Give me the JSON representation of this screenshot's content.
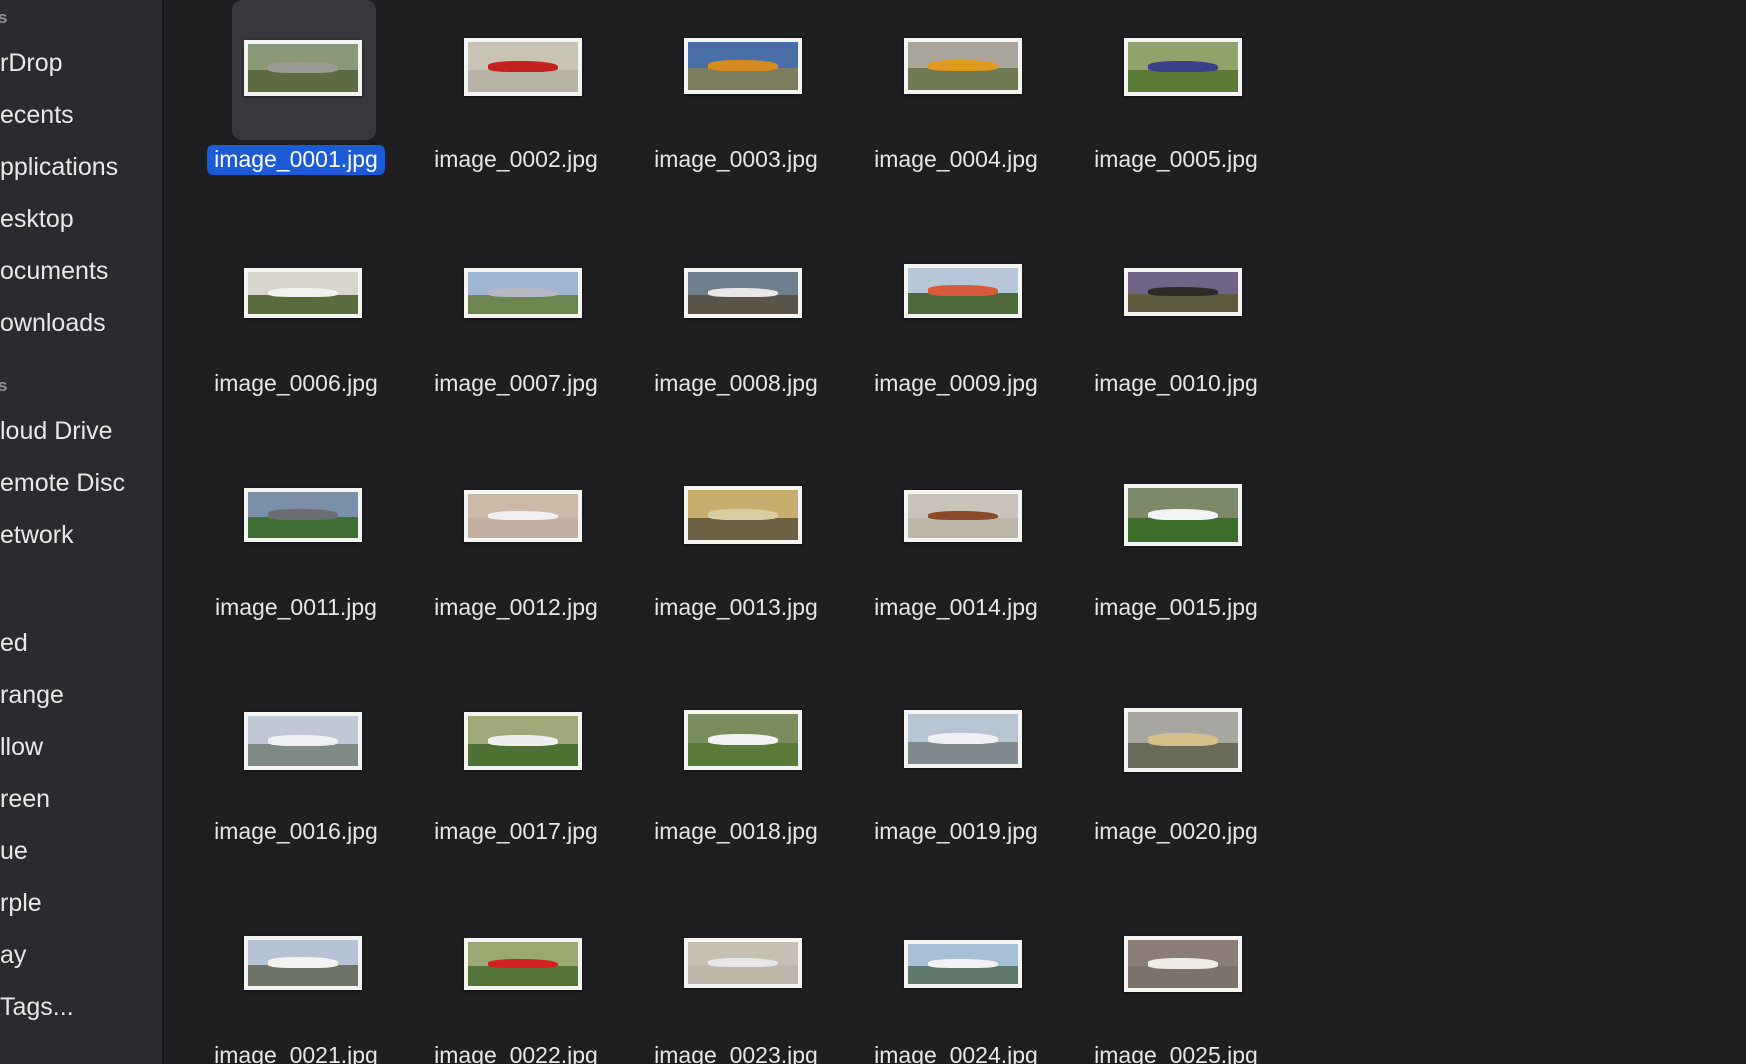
{
  "sidebar": {
    "section_headers": [
      "s",
      "s"
    ],
    "favorites": [
      "rDrop",
      "ecents",
      "pplications",
      "esktop",
      "ocuments",
      "ownloads"
    ],
    "locations": [
      "loud Drive",
      "emote Disc",
      "etwork"
    ],
    "tags": [
      "ed",
      "range",
      "llow",
      "reen",
      "ue",
      "rple",
      "ay",
      " Tags..."
    ]
  },
  "files": [
    {
      "name": "image_0001.jpg",
      "selected": true,
      "colors": {
        "sky": "#8a9a78",
        "ground": "#5d6b43",
        "plane": "#9a9b93"
      }
    },
    {
      "name": "image_0002.jpg",
      "selected": false,
      "colors": {
        "sky": "#c9c3b6",
        "ground": "#b9b2a6",
        "plane": "#c4201f"
      }
    },
    {
      "name": "image_0003.jpg",
      "selected": false,
      "colors": {
        "sky": "#4a6fa8",
        "ground": "#7b7d5e",
        "plane": "#d98a1e"
      }
    },
    {
      "name": "image_0004.jpg",
      "selected": false,
      "colors": {
        "sky": "#a9a59a",
        "ground": "#6f7a52",
        "plane": "#e09a20"
      }
    },
    {
      "name": "image_0005.jpg",
      "selected": false,
      "colors": {
        "sky": "#8fa36a",
        "ground": "#5c7a36",
        "plane": "#3c3f8a"
      }
    },
    {
      "name": "image_0006.jpg",
      "selected": false,
      "colors": {
        "sky": "#d8d5cc",
        "ground": "#5a6b3d",
        "plane": "#f1f1ef"
      }
    },
    {
      "name": "image_0007.jpg",
      "selected": false,
      "colors": {
        "sky": "#9fb6d4",
        "ground": "#6d8550",
        "plane": "#b8b8c4"
      }
    },
    {
      "name": "image_0008.jpg",
      "selected": false,
      "colors": {
        "sky": "#6f7f8e",
        "ground": "#595348",
        "plane": "#e8e8e8"
      }
    },
    {
      "name": "image_0009.jpg",
      "selected": false,
      "colors": {
        "sky": "#b9c8d8",
        "ground": "#4f6a3a",
        "plane": "#d85a3a"
      }
    },
    {
      "name": "image_0010.jpg",
      "selected": false,
      "colors": {
        "sky": "#6f6486",
        "ground": "#5d5a3e",
        "plane": "#2f2a2a"
      }
    },
    {
      "name": "image_0011.jpg",
      "selected": false,
      "colors": {
        "sky": "#7b8fa8",
        "ground": "#3f6e34",
        "plane": "#6b6e70"
      }
    },
    {
      "name": "image_0012.jpg",
      "selected": false,
      "colors": {
        "sky": "#cdb9a8",
        "ground": "#c4b0a0",
        "plane": "#f0eeee"
      }
    },
    {
      "name": "image_0013.jpg",
      "selected": false,
      "colors": {
        "sky": "#c8ae6e",
        "ground": "#6b6244",
        "plane": "#d8cda0"
      }
    },
    {
      "name": "image_0014.jpg",
      "selected": false,
      "colors": {
        "sky": "#c9c3b9",
        "ground": "#bcb5aa",
        "plane": "#8a4a2a"
      }
    },
    {
      "name": "image_0015.jpg",
      "selected": false,
      "colors": {
        "sky": "#7d8a6a",
        "ground": "#3e6e2e",
        "plane": "#f4f4f6"
      }
    },
    {
      "name": "image_0016.jpg",
      "selected": false,
      "colors": {
        "sky": "#bfc8d4",
        "ground": "#7f8a86",
        "plane": "#eef0f2"
      }
    },
    {
      "name": "image_0017.jpg",
      "selected": false,
      "colors": {
        "sky": "#9ea878",
        "ground": "#4e7234",
        "plane": "#eeeeee"
      }
    },
    {
      "name": "image_0018.jpg",
      "selected": false,
      "colors": {
        "sky": "#7a8d5c",
        "ground": "#5a7a3a",
        "plane": "#f2f2f2"
      }
    },
    {
      "name": "image_0019.jpg",
      "selected": false,
      "colors": {
        "sky": "#b7c4d2",
        "ground": "#7f8b8e",
        "plane": "#f0f0f4"
      }
    },
    {
      "name": "image_0020.jpg",
      "selected": false,
      "colors": {
        "sky": "#a7a6a0",
        "ground": "#6a6a5a",
        "plane": "#d6c08a"
      }
    },
    {
      "name": "image_0021.jpg",
      "selected": false,
      "colors": {
        "sky": "#b5c3d5",
        "ground": "#6e7368",
        "plane": "#f2f2f2"
      }
    },
    {
      "name": "image_0022.jpg",
      "selected": false,
      "colors": {
        "sky": "#9aa872",
        "ground": "#55743a",
        "plane": "#d42020"
      }
    },
    {
      "name": "image_0023.jpg",
      "selected": false,
      "colors": {
        "sky": "#c7bfb4",
        "ground": "#beb6aa",
        "plane": "#e6e6e6"
      }
    },
    {
      "name": "image_0024.jpg",
      "selected": false,
      "colors": {
        "sky": "#a8c0d6",
        "ground": "#5f7a6a",
        "plane": "#f2f2f6"
      }
    },
    {
      "name": "image_0025.jpg",
      "selected": false,
      "colors": {
        "sky": "#8a7e76",
        "ground": "#7d726a",
        "plane": "#f0ece6"
      }
    }
  ],
  "colors": {
    "window_bg": "#1f1f22",
    "sidebar_bg": "#2b2b2f",
    "selection_accent": "#1c5bd6"
  }
}
